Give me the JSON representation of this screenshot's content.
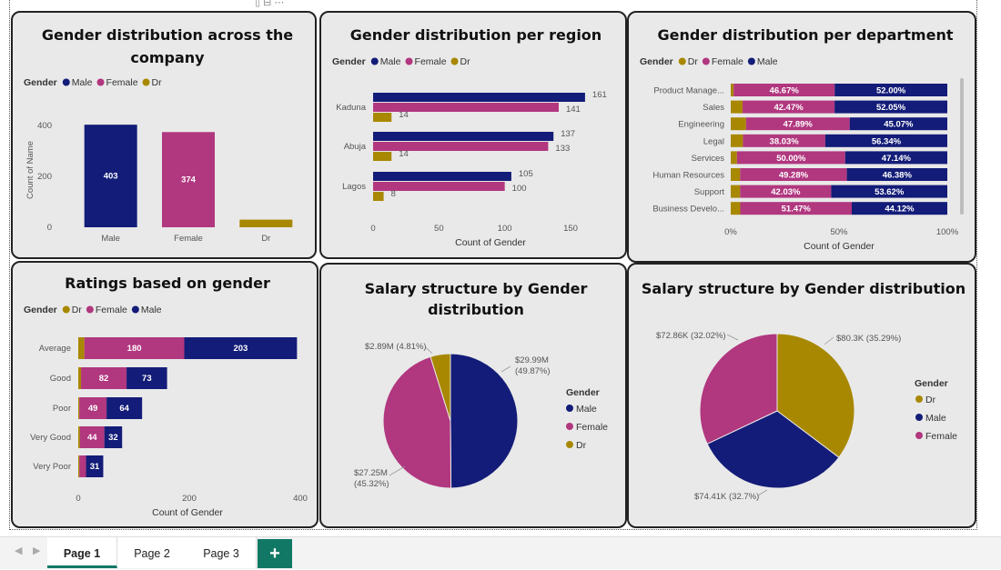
{
  "colors": {
    "male": "#131c78",
    "female": "#b1377f",
    "dr": "#a88800"
  },
  "legend_title": "Gender",
  "tabs": [
    {
      "label": "Page 1",
      "active": true
    },
    {
      "label": "Page 2",
      "active": false
    },
    {
      "label": "Page 3",
      "active": false
    }
  ],
  "add_tab_label": "+",
  "chart_data": [
    {
      "id": "company",
      "type": "bar",
      "title": "Gender distribution across the company",
      "title_lines": [
        "Gender distribution across the",
        "company"
      ],
      "legend": [
        "Male",
        "Female",
        "Dr"
      ],
      "categories": [
        "Male",
        "Female",
        "Dr"
      ],
      "values": [
        403,
        374,
        30
      ],
      "data_labels": [
        "403",
        "374",
        ""
      ],
      "ylabel": "Count of Name",
      "ylim": [
        0,
        450
      ],
      "yticks": [
        0,
        200,
        400
      ]
    },
    {
      "id": "region",
      "type": "bar",
      "orientation": "horizontal",
      "title": "Gender distribution per region",
      "legend": [
        "Male",
        "Female",
        "Dr"
      ],
      "categories": [
        "Kaduna",
        "Abuja",
        "Lagos"
      ],
      "series": [
        {
          "name": "Male",
          "values": [
            161,
            137,
            105
          ]
        },
        {
          "name": "Female",
          "values": [
            141,
            133,
            100
          ]
        },
        {
          "name": "Dr",
          "values": [
            14,
            14,
            8
          ]
        }
      ],
      "xlabel": "Count of Gender",
      "xlim": [
        0,
        180
      ],
      "xticks": [
        0,
        50,
        100,
        150
      ]
    },
    {
      "id": "department",
      "type": "bar",
      "orientation": "horizontal",
      "stacked": "100%",
      "title": "Gender distribution per department",
      "legend": [
        "Dr",
        "Female",
        "Male"
      ],
      "categories": [
        "Product Manage...",
        "Sales",
        "Engineering",
        "Legal",
        "Services",
        "Human Resources",
        "Support",
        "Business Develo..."
      ],
      "series": [
        {
          "name": "Dr",
          "values": [
            1.33,
            5.48,
            7.04,
            5.63,
            2.86,
            4.34,
            4.35,
            4.41
          ]
        },
        {
          "name": "Female",
          "values": [
            46.67,
            42.47,
            47.89,
            38.03,
            50.0,
            49.28,
            42.03,
            51.47
          ],
          "labels": [
            "46.67%",
            "42.47%",
            "47.89%",
            "38.03%",
            "50.00%",
            "49.28%",
            "42.03%",
            "51.47%"
          ]
        },
        {
          "name": "Male",
          "values": [
            52.0,
            52.05,
            45.07,
            56.34,
            47.14,
            46.38,
            53.62,
            44.12
          ],
          "labels": [
            "52.00%",
            "52.05%",
            "45.07%",
            "56.34%",
            "47.14%",
            "46.38%",
            "53.62%",
            "44.12%"
          ]
        }
      ],
      "xlabel": "Count of Gender",
      "xticks": [
        "0%",
        "50%",
        "100%"
      ]
    },
    {
      "id": "ratings",
      "type": "bar",
      "orientation": "horizontal",
      "stacked": true,
      "title": "Ratings based on gender",
      "legend": [
        "Dr",
        "Female",
        "Male"
      ],
      "categories": [
        "Average",
        "Good",
        "Poor",
        "Very Good",
        "Very Poor"
      ],
      "series": [
        {
          "name": "Dr",
          "values": [
            11,
            5,
            2,
            3,
            2
          ]
        },
        {
          "name": "Female",
          "values": [
            180,
            82,
            49,
            44,
            12
          ],
          "labels": [
            "180",
            "82",
            "49",
            "44",
            ""
          ]
        },
        {
          "name": "Male",
          "values": [
            203,
            73,
            64,
            32,
            31
          ],
          "labels": [
            "203",
            "73",
            "64",
            "32",
            "31"
          ]
        }
      ],
      "xlabel": "Count of Gender",
      "xlim": [
        0,
        400
      ],
      "xticks": [
        0,
        200,
        400
      ]
    },
    {
      "id": "salary1",
      "type": "pie",
      "title": "Salary structure by Gender distribution",
      "title_lines": [
        "Salary structure by Gender",
        "distribution"
      ],
      "legend": [
        "Male",
        "Female",
        "Dr"
      ],
      "slices": [
        {
          "name": "Male",
          "value": 29.99,
          "label": [
            "$29.99M",
            "(49.87%)"
          ]
        },
        {
          "name": "Female",
          "value": 27.25,
          "label": [
            "$27.25M",
            "(45.32%)"
          ]
        },
        {
          "name": "Dr",
          "value": 2.89,
          "label": [
            "$2.89M (4.81%)"
          ]
        }
      ]
    },
    {
      "id": "salary2",
      "type": "pie",
      "title": "Salary structure by Gender distribution",
      "legend": [
        "Dr",
        "Male",
        "Female"
      ],
      "slices": [
        {
          "name": "Dr",
          "value": 80.3,
          "label": [
            "$80.3K (35.29%)"
          ]
        },
        {
          "name": "Male",
          "value": 74.41,
          "label": [
            "$74.41K (32.7%)"
          ]
        },
        {
          "name": "Female",
          "value": 72.86,
          "label": [
            "$72.86K (32.02%)"
          ]
        }
      ]
    }
  ]
}
